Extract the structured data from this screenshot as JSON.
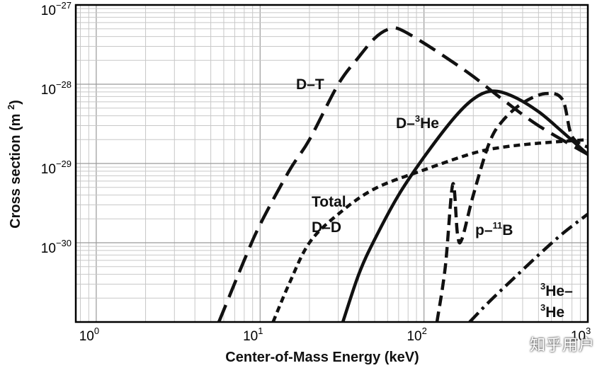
{
  "chart_data": {
    "type": "line",
    "title": "",
    "xlabel": "Center-of-Mass Energy (keV)",
    "ylabel": "Cross section (m²)",
    "xscale": "log",
    "yscale": "log",
    "xlim": [
      0.75,
      1000
    ],
    "ylim": [
      1e-31,
      1e-27
    ],
    "grid": true,
    "x_ticks": [
      {
        "value": 1,
        "base": "10",
        "exp": "0"
      },
      {
        "value": 10,
        "base": "10",
        "exp": "1"
      },
      {
        "value": 100,
        "base": "10",
        "exp": "2"
      },
      {
        "value": 1000,
        "base": "10",
        "exp": "3"
      }
    ],
    "y_ticks": [
      {
        "value": 1e-27,
        "base": "10",
        "exp": "−27"
      },
      {
        "value": 1e-28,
        "base": "10",
        "exp": "−28"
      },
      {
        "value": 1e-29,
        "base": "10",
        "exp": "−29"
      },
      {
        "value": 1e-30,
        "base": "10",
        "exp": "−30"
      }
    ],
    "series": [
      {
        "name": "D−T",
        "style": "long-dash",
        "x": [
          5.6,
          8,
          10,
          15,
          20,
          30,
          40,
          50,
          60,
          70,
          100,
          150,
          200,
          300,
          500,
          1000
        ],
        "y": [
          1e-31,
          6e-31,
          1.7e-30,
          8e-30,
          2e-29,
          1e-28,
          2.2e-28,
          3.8e-28,
          4.9e-28,
          5e-28,
          3.3e-28,
          1.9e-28,
          1.25e-28,
          6.5e-29,
          3e-29,
          1.3e-29
        ]
      },
      {
        "name": "D−³He",
        "style": "solid",
        "x": [
          32,
          40,
          50,
          70,
          100,
          150,
          200,
          260,
          350,
          500,
          700,
          1000
        ],
        "y": [
          1e-31,
          4e-31,
          1.1e-30,
          4e-30,
          1.2e-29,
          3.6e-29,
          6.5e-29,
          8.2e-29,
          7e-29,
          4.5e-29,
          2.5e-29,
          1.3e-29
        ]
      },
      {
        "name": "Total D−D",
        "style": "short-dash",
        "x": [
          12,
          15,
          20,
          30,
          50,
          100,
          200,
          300,
          500,
          1000
        ],
        "y": [
          1e-31,
          3e-31,
          1e-30,
          2.3e-30,
          4.8e-30,
          8.3e-30,
          1.35e-29,
          1.6e-29,
          1.8e-29,
          2e-29
        ]
      },
      {
        "name": "p−¹¹B",
        "style": "dash",
        "x": [
          120,
          135,
          150,
          160,
          170,
          200,
          250,
          300,
          400,
          550,
          700,
          800,
          1000
        ],
        "y": [
          1e-31,
          5e-31,
          5.5e-30,
          1.3e-30,
          1.1e-30,
          4e-30,
          1.8e-29,
          3.4e-29,
          5.8e-29,
          7.6e-29,
          6.4e-29,
          2.2e-29,
          1.6e-29
        ]
      },
      {
        "name": "³He−³He",
        "style": "dash-dot",
        "x": [
          190,
          250,
          350,
          500,
          700,
          1000
        ],
        "y": [
          1e-31,
          1.8e-31,
          3.5e-31,
          7e-31,
          1.3e-30,
          2.3e-30
        ]
      }
    ],
    "annotations": [
      {
        "text": "D–T",
        "sup": ""
      },
      {
        "text": "D–",
        "sup": "3",
        "tail": "He"
      },
      {
        "text": "Total",
        "sup": ""
      },
      {
        "text": "D–D",
        "sup": ""
      },
      {
        "text": "p–",
        "sup": "11",
        "tail": "B"
      },
      {
        "text": "",
        "sup": "3",
        "tail": "He–"
      },
      {
        "text": "",
        "sup": "3",
        "tail": "He"
      }
    ]
  },
  "watermark": "知乎用户"
}
